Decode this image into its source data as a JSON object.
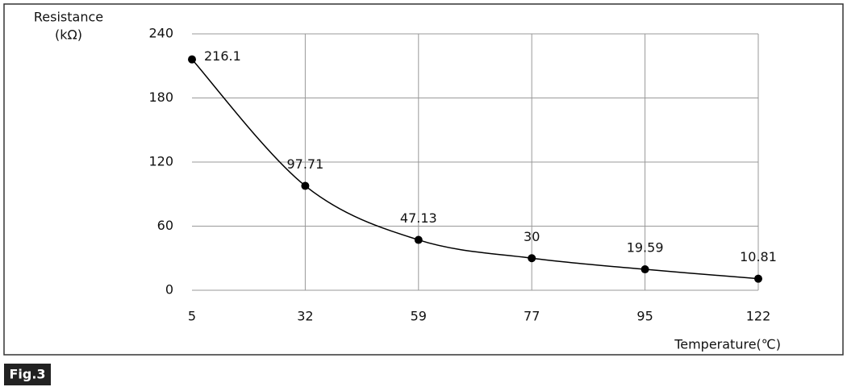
{
  "chart_data": {
    "type": "line",
    "ylabel": "Resistance",
    "ylabel_unit": "(kΩ)",
    "xlabel": "Temperature(℃)",
    "figure_label": "Fig.3",
    "categories": [
      "5",
      "32",
      "59",
      "77",
      "95",
      "122"
    ],
    "values": [
      216.1,
      97.71,
      47.13,
      30,
      19.59,
      10.81
    ],
    "color": "#000000",
    "ylim": [
      0,
      240
    ],
    "yticks": [
      0,
      60,
      120,
      180,
      240
    ],
    "grid": true
  }
}
